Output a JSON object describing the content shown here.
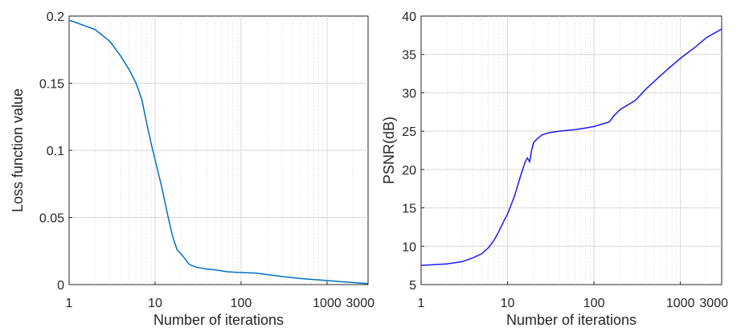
{
  "chart_data": [
    {
      "type": "line",
      "xscale": "log",
      "xlabel": "Number of iterations",
      "ylabel": "Loss function value",
      "xlim": [
        1,
        3000
      ],
      "ylim": [
        0,
        0.2
      ],
      "xticks": [
        1,
        10,
        100,
        1000,
        3000
      ],
      "xtick_labels": [
        "1",
        "10",
        "100",
        "1000",
        "3000"
      ],
      "yticks": [
        0,
        0.05,
        0.1,
        0.15,
        0.2
      ],
      "ytick_labels": [
        "0",
        "0.05",
        "0.1",
        "0.15",
        "0.2"
      ],
      "grid": true,
      "line_color": "#0072BD",
      "series": [
        {
          "x": [
            1,
            2,
            3,
            4,
            5,
            6,
            7,
            8,
            9,
            10,
            12,
            14,
            16,
            18,
            20,
            25,
            30,
            40,
            50,
            70,
            100,
            150,
            200,
            300,
            500,
            1000,
            2000,
            3000
          ],
          "y": [
            0.197,
            0.19,
            0.181,
            0.17,
            0.16,
            0.15,
            0.138,
            0.12,
            0.105,
            0.093,
            0.072,
            0.052,
            0.036,
            0.026,
            0.023,
            0.015,
            0.013,
            0.0115,
            0.011,
            0.0095,
            0.009,
            0.0085,
            0.0075,
            0.006,
            0.0045,
            0.003,
            0.0015,
            0.0008
          ]
        }
      ]
    },
    {
      "type": "line",
      "xscale": "log",
      "xlabel": "Number of iterations",
      "ylabel": "PSNR(dB)",
      "xlim": [
        1,
        3000
      ],
      "ylim": [
        5,
        40
      ],
      "xticks": [
        1,
        10,
        100,
        1000,
        3000
      ],
      "xtick_labels": [
        "1",
        "10",
        "100",
        "1000",
        "3000"
      ],
      "yticks": [
        5,
        10,
        15,
        20,
        25,
        30,
        35,
        40
      ],
      "ytick_labels": [
        "5",
        "10",
        "15",
        "20",
        "25",
        "30",
        "35",
        "40"
      ],
      "grid": true,
      "line_color": "#1a1aff",
      "series": [
        {
          "x": [
            1,
            2,
            3,
            4,
            5,
            6,
            7,
            8,
            9,
            10,
            12,
            14,
            16,
            17,
            18,
            19,
            20,
            22,
            25,
            30,
            40,
            60,
            80,
            100,
            150,
            170,
            200,
            300,
            400,
            500,
            700,
            1000,
            1500,
            2000,
            3000
          ],
          "y": [
            7.5,
            7.7,
            8.0,
            8.5,
            9.0,
            9.8,
            10.8,
            12.0,
            13.2,
            14.2,
            16.5,
            19.0,
            21.0,
            21.5,
            21.0,
            22.5,
            23.5,
            24.0,
            24.5,
            24.8,
            25.0,
            25.2,
            25.4,
            25.6,
            26.2,
            27.0,
            27.8,
            29.0,
            30.5,
            31.5,
            33.0,
            34.5,
            36.0,
            37.2,
            38.3
          ]
        }
      ]
    }
  ]
}
